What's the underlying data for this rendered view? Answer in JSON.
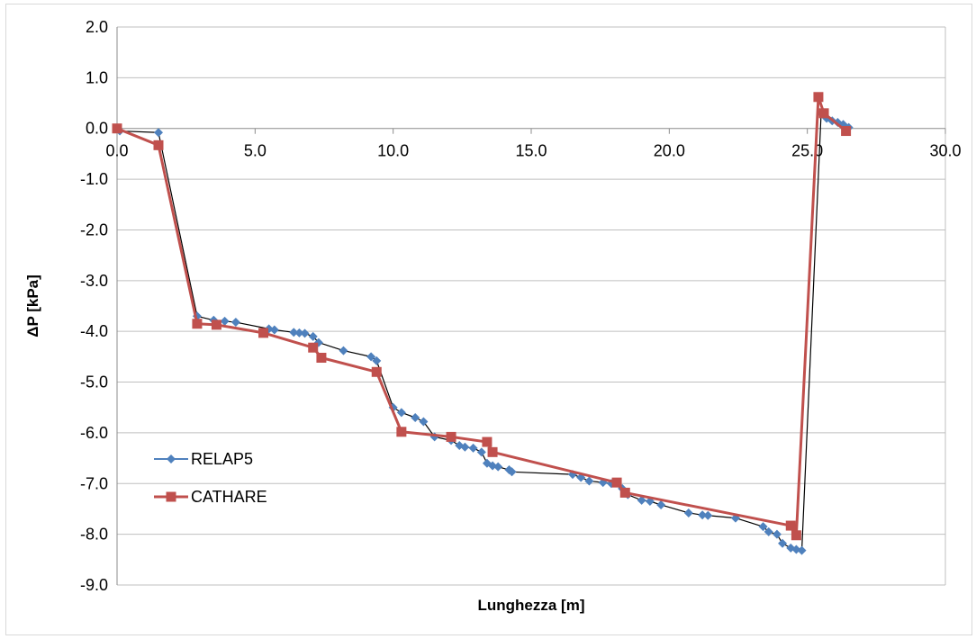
{
  "chart_data": {
    "type": "line",
    "xlabel": "Lunghezza [m]",
    "ylabel": "ΔP [kPa]",
    "xlim": [
      0,
      30
    ],
    "ylim": [
      -9,
      2
    ],
    "x_ticks": [
      "0.0",
      "5.0",
      "10.0",
      "15.0",
      "20.0",
      "25.0",
      "30.0"
    ],
    "y_ticks": [
      "2.0",
      "1.0",
      "0.0",
      "-1.0",
      "-2.0",
      "-3.0",
      "-4.0",
      "-5.0",
      "-6.0",
      "-7.0",
      "-8.0",
      "-9.0"
    ],
    "grid": "horizontal",
    "legend_position": "lower-left",
    "series": [
      {
        "name": "RELAP5",
        "color": "#4f81bd",
        "line_color": "#000000",
        "marker": "diamond",
        "points": [
          [
            0.0,
            0.0
          ],
          [
            0.1,
            -0.05
          ],
          [
            1.5,
            -0.08
          ],
          [
            2.9,
            -3.7
          ],
          [
            3.5,
            -3.78
          ],
          [
            3.9,
            -3.8
          ],
          [
            4.3,
            -3.82
          ],
          [
            5.5,
            -3.95
          ],
          [
            5.7,
            -3.97
          ],
          [
            6.4,
            -4.02
          ],
          [
            6.6,
            -4.03
          ],
          [
            6.8,
            -4.04
          ],
          [
            7.1,
            -4.1
          ],
          [
            7.3,
            -4.22
          ],
          [
            8.2,
            -4.38
          ],
          [
            9.2,
            -4.5
          ],
          [
            9.4,
            -4.58
          ],
          [
            10.0,
            -5.5
          ],
          [
            10.3,
            -5.6
          ],
          [
            10.8,
            -5.7
          ],
          [
            11.1,
            -5.78
          ],
          [
            11.5,
            -6.08
          ],
          [
            12.1,
            -6.15
          ],
          [
            12.4,
            -6.25
          ],
          [
            12.6,
            -6.28
          ],
          [
            12.9,
            -6.3
          ],
          [
            13.2,
            -6.38
          ],
          [
            13.4,
            -6.6
          ],
          [
            13.6,
            -6.65
          ],
          [
            13.8,
            -6.67
          ],
          [
            14.2,
            -6.73
          ],
          [
            14.3,
            -6.77
          ],
          [
            16.5,
            -6.82
          ],
          [
            16.8,
            -6.88
          ],
          [
            17.1,
            -6.95
          ],
          [
            17.6,
            -6.98
          ],
          [
            17.9,
            -7.0
          ],
          [
            18.3,
            -7.1
          ],
          [
            18.5,
            -7.22
          ],
          [
            19.0,
            -7.33
          ],
          [
            19.3,
            -7.35
          ],
          [
            19.7,
            -7.42
          ],
          [
            20.7,
            -7.58
          ],
          [
            21.2,
            -7.62
          ],
          [
            21.4,
            -7.63
          ],
          [
            22.4,
            -7.68
          ],
          [
            23.4,
            -7.85
          ],
          [
            23.6,
            -7.95
          ],
          [
            23.9,
            -8.0
          ],
          [
            24.1,
            -8.18
          ],
          [
            24.4,
            -8.27
          ],
          [
            24.6,
            -8.3
          ],
          [
            24.8,
            -8.32
          ],
          [
            25.5,
            0.3
          ],
          [
            25.7,
            0.2
          ],
          [
            25.9,
            0.15
          ],
          [
            26.1,
            0.12
          ],
          [
            26.3,
            0.08
          ],
          [
            26.5,
            0.02
          ]
        ]
      },
      {
        "name": "CATHARE",
        "color": "#c0504d",
        "line_color": "#c0504d",
        "marker": "square",
        "points": [
          [
            0.0,
            0.0
          ],
          [
            1.5,
            -0.33
          ],
          [
            2.9,
            -3.85
          ],
          [
            3.6,
            -3.87
          ],
          [
            5.3,
            -4.03
          ],
          [
            7.1,
            -4.32
          ],
          [
            7.4,
            -4.52
          ],
          [
            9.4,
            -4.8
          ],
          [
            10.3,
            -5.98
          ],
          [
            12.1,
            -6.08
          ],
          [
            13.4,
            -6.18
          ],
          [
            13.6,
            -6.38
          ],
          [
            18.1,
            -6.98
          ],
          [
            18.4,
            -7.18
          ],
          [
            24.4,
            -7.83
          ],
          [
            24.6,
            -8.02
          ],
          [
            25.4,
            0.62
          ],
          [
            25.6,
            0.3
          ],
          [
            26.4,
            -0.05
          ]
        ]
      }
    ]
  }
}
